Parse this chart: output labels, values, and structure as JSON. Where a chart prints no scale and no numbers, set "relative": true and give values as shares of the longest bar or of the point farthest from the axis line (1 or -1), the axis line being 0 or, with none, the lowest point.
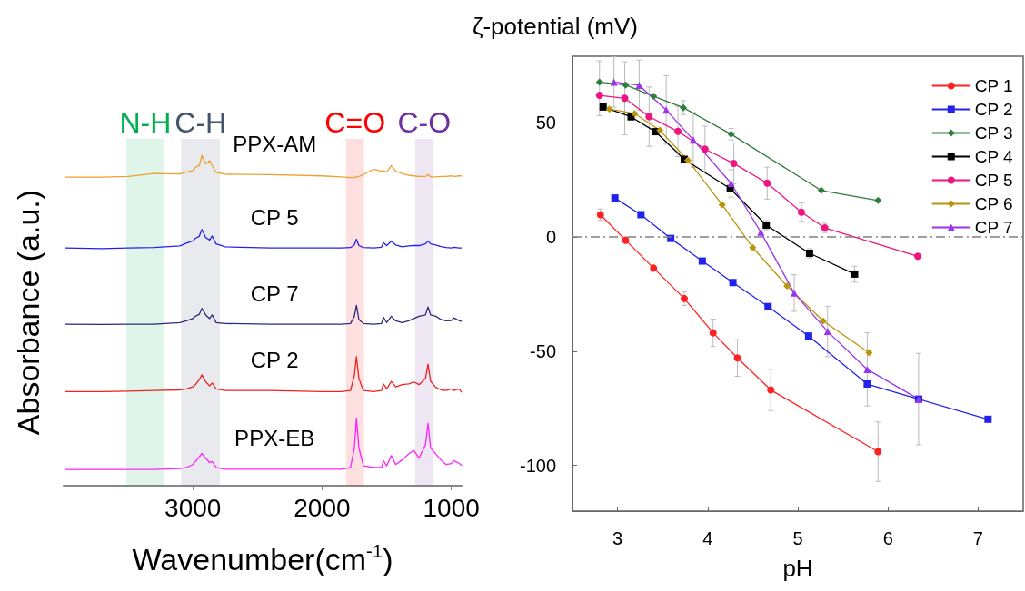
{
  "chart_data": [
    {
      "type": "line",
      "relative": true,
      "xlabel": "Wavenumber(cm$^{-1}$)",
      "ylabel": "Absorbance (a.u.)",
      "marker": "none",
      "line_style": "solid",
      "grid": false,
      "legend": false,
      "x": [
        3990,
        3700,
        3500,
        3300,
        3100,
        3050,
        3000,
        2980,
        2950,
        2930,
        2900,
        2870,
        2850,
        2820,
        2750,
        2400,
        2000,
        1850,
        1780,
        1750,
        1734,
        1715,
        1680,
        1600,
        1540,
        1525,
        1500,
        1464,
        1430,
        1380,
        1330,
        1289,
        1250,
        1200,
        1180,
        1160,
        1120,
        1080,
        1040,
        1000,
        981,
        940,
        920
      ],
      "series": [
        {
          "name": "PPX-AM",
          "color": "#f0a030",
          "values": [
            0.934,
            0.934,
            0.936,
            0.945,
            0.944,
            0.949,
            0.954,
            0.964,
            0.969,
            1,
            0.974,
            0.984,
            0.969,
            0.949,
            0.943,
            0.942,
            0.938,
            0.935,
            0.933,
            0.933,
            0.935,
            0.936,
            0.942,
            0.958,
            0.952,
            0.954,
            0.949,
            0.969,
            0.952,
            0.945,
            0.94,
            0.938,
            0.936,
            0.936,
            0.942,
            0.935,
            0.935,
            0.936,
            0.936,
            0.938,
            0.936,
            0.938,
            0.938
          ]
        },
        {
          "name": "CP 5",
          "color": "#2222ee",
          "values": [
            0.72,
            0.718,
            0.72,
            0.721,
            0.726,
            0.734,
            0.741,
            0.749,
            0.755,
            0.776,
            0.751,
            0.744,
            0.756,
            0.732,
            0.723,
            0.72,
            0.72,
            0.72,
            0.721,
            0.729,
            0.746,
            0.727,
            0.721,
            0.72,
            0.722,
            0.736,
            0.727,
            0.74,
            0.729,
            0.723,
            0.726,
            0.727,
            0.727,
            0.732,
            0.741,
            0.732,
            0.729,
            0.724,
            0.721,
            0.72,
            0.722,
            0.72,
            0.72
          ]
        },
        {
          "name": "CP 7",
          "color": "#2b2b7a",
          "values": [
            0.489,
            0.488,
            0.489,
            0.489,
            0.494,
            0.499,
            0.506,
            0.513,
            0.519,
            0.537,
            0.517,
            0.506,
            0.517,
            0.494,
            0.491,
            0.489,
            0.489,
            0.489,
            0.491,
            0.513,
            0.546,
            0.503,
            0.491,
            0.489,
            0.491,
            0.51,
            0.494,
            0.513,
            0.499,
            0.494,
            0.499,
            0.506,
            0.513,
            0.517,
            0.541,
            0.517,
            0.513,
            0.503,
            0.499,
            0.5,
            0.508,
            0.5,
            0.497
          ]
        },
        {
          "name": "CP 2",
          "color": "#ee2222",
          "values": [
            0.285,
            0.285,
            0.286,
            0.288,
            0.29,
            0.293,
            0.299,
            0.306,
            0.321,
            0.336,
            0.314,
            0.302,
            0.311,
            0.293,
            0.288,
            0.288,
            0.285,
            0.285,
            0.288,
            0.334,
            0.391,
            0.324,
            0.288,
            0.285,
            0.288,
            0.308,
            0.293,
            0.316,
            0.299,
            0.306,
            0.308,
            0.314,
            0.306,
            0.324,
            0.368,
            0.316,
            0.298,
            0.29,
            0.288,
            0.293,
            0.288,
            0.293,
            0.283
          ]
        },
        {
          "name": "PPX-EB",
          "color": "#ff22ff",
          "values": [
            0.049,
            0.049,
            0.049,
            0.049,
            0.052,
            0.055,
            0.064,
            0.073,
            0.087,
            0.098,
            0.083,
            0.07,
            0.073,
            0.055,
            0.05,
            0.05,
            0.05,
            0.05,
            0.055,
            0.114,
            0.205,
            0.114,
            0.06,
            0.055,
            0.055,
            0.076,
            0.06,
            0.091,
            0.064,
            0.078,
            0.096,
            0.107,
            0.083,
            0.124,
            0.189,
            0.114,
            0.096,
            0.078,
            0.064,
            0.067,
            0.076,
            0.068,
            0.061
          ]
        }
      ],
      "xlim": [
        4000,
        920
      ],
      "xticks": [
        3000,
        2000,
        1000
      ],
      "bands": [
        {
          "axis": "x",
          "from": 3515,
          "to": 3220,
          "label": "N-H",
          "color": "#00b050"
        },
        {
          "axis": "x",
          "from": 3090,
          "to": 2790,
          "label": "C-H",
          "color": "#44546a"
        },
        {
          "axis": "x",
          "from": 1815,
          "to": 1675,
          "label": "C=O",
          "color": "#ff0000"
        },
        {
          "axis": "x",
          "from": 1280,
          "to": 1140,
          "label": "C-O",
          "color": "#7030a0"
        }
      ]
    },
    {
      "type": "line",
      "xlabel": "pH",
      "ylabel": "ζ-potential (mV)",
      "line_style": "solid",
      "grid": false,
      "legend": "top right",
      "xlim": [
        2.5,
        7.5
      ],
      "xticks": [
        3,
        4,
        5,
        6,
        7
      ],
      "ylim": [
        -120,
        79
      ],
      "yticks": [
        -100,
        -50,
        0,
        50
      ],
      "ref_lines": [
        {
          "axis": "y",
          "value": 0,
          "label": null,
          "color": "#808080",
          "line_style": "dashed"
        }
      ],
      "series": [
        {
          "name": "CP 1",
          "color": "#ff2222",
          "marker": "circle",
          "x": [
            2.81,
            3.09,
            3.4,
            3.74,
            4.06,
            4.33,
            4.7,
            5.89
          ],
          "values": [
            9.7,
            -1.5,
            -13.7,
            -27,
            -42,
            -53,
            -67,
            -94
          ],
          "errors": [
            2.5,
            null,
            null,
            3,
            6,
            8,
            9,
            13
          ]
        },
        {
          "name": "CP 2",
          "color": "#2222ee",
          "marker": "square",
          "x": [
            2.97,
            3.26,
            3.59,
            3.94,
            4.28,
            4.67,
            5.12,
            5.77,
            6.34,
            7.11
          ],
          "values": [
            17,
            9.7,
            -0.7,
            -10.6,
            -20,
            -30.5,
            -43.4,
            -64.4,
            -71,
            -79.8
          ]
        },
        {
          "name": "CP 3",
          "color": "#2e7d3a",
          "marker": "diamond",
          "x": [
            2.8,
            3.09,
            3.4,
            3.73,
            4.26,
            5.26,
            5.89
          ],
          "values": [
            67.7,
            66.4,
            61.5,
            56.5,
            44.9,
            20.3,
            15.9
          ],
          "errors": [
            [
              53,
              77
            ],
            null,
            null,
            3,
            2.5,
            null,
            null
          ]
        },
        {
          "name": "CP 4",
          "color": "#000000",
          "marker": "square",
          "x": [
            2.84,
            3.15,
            3.42,
            3.74,
            4.25,
            4.65,
            5.13,
            5.63
          ],
          "values": [
            56.8,
            52.5,
            46,
            33.9,
            21.1,
            5.1,
            -7.2,
            -16.3
          ],
          "errors": [
            null,
            null,
            null,
            null,
            null,
            2,
            2,
            3.5
          ]
        },
        {
          "name": "CP 5",
          "color": "#f0147f",
          "marker": "circle",
          "x": [
            2.8,
            3.08,
            3.35,
            3.67,
            3.97,
            4.29,
            4.66,
            5.04,
            5.3,
            6.33
          ],
          "values": [
            61.9,
            60.6,
            52.6,
            46.1,
            38.4,
            32.1,
            23.5,
            10.8,
            3.9,
            -8.5
          ],
          "errors": [
            null,
            16,
            13,
            11,
            10,
            9,
            7,
            4,
            2,
            null
          ]
        },
        {
          "name": "CP 6",
          "color": "#b8960c",
          "marker": "diamond",
          "x": [
            2.91,
            3.19,
            3.47,
            3.78,
            4.16,
            4.5,
            4.88,
            5.28,
            5.79
          ],
          "values": [
            55.9,
            53.9,
            46.6,
            33.5,
            14.1,
            -4.7,
            -21.5,
            -36.8,
            -50.7
          ]
        },
        {
          "name": "CP 7",
          "color": "#9933ee",
          "marker": "triangle",
          "x": [
            2.96,
            3.24,
            3.54,
            3.84,
            4.26,
            4.59,
            4.96,
            5.33,
            5.77,
            6.34
          ],
          "values": [
            67.7,
            66.3,
            55.5,
            42.4,
            23.4,
            2,
            -24.6,
            -41.4,
            -58,
            -71
          ],
          "errors": [
            11,
            11,
            15,
            12,
            6,
            null,
            8,
            11,
            16,
            20
          ]
        }
      ]
    }
  ]
}
